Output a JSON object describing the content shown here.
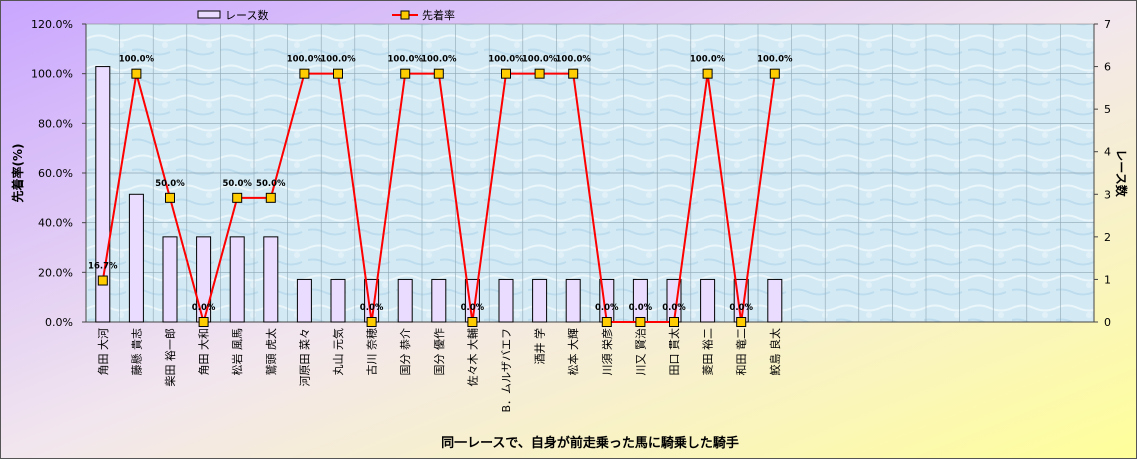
{
  "chart_data": {
    "type": "bar+line",
    "xlabel": "同一レースで、自身が前走乗った馬に騎乗した騎手",
    "y_left_label": "先着率(%)",
    "y_right_label": "レース数",
    "y_left_range": [
      0,
      120
    ],
    "y_left_ticks": [
      "0.0%",
      "20.0%",
      "40.0%",
      "60.0%",
      "80.0%",
      "100.0%",
      "120.0%"
    ],
    "y_right_range": [
      0,
      7
    ],
    "y_right_ticks": [
      "0",
      "1",
      "2",
      "3",
      "4",
      "5",
      "6",
      "7"
    ],
    "slots": 30,
    "legend": {
      "bar_label": "レース数",
      "line_label": "先着率",
      "placement": "top"
    },
    "categories": [
      "角田 大河",
      "藤懸 貴志",
      "柴田 裕一郎",
      "角田 大和",
      "松岩 風馬",
      "鷲頭 虎太",
      "河原田 菜々",
      "丸山 元気",
      "古川 奈穂",
      "国分 恭介",
      "国分 優作",
      "佐々木 大輔",
      "B．ムルザバエフ",
      "酒井 学",
      "松本 大輝",
      "川須 栄彦",
      "川又 賢治",
      "田口 貫太",
      "菱田 裕二",
      "和田 竜二",
      "鮫島 良太"
    ],
    "series": [
      {
        "name": "レース数",
        "type": "bar",
        "axis": "right",
        "values": [
          6,
          3,
          2,
          2,
          2,
          2,
          1,
          1,
          1,
          1,
          1,
          1,
          1,
          1,
          1,
          1,
          1,
          1,
          1,
          1,
          1
        ]
      },
      {
        "name": "先着率",
        "type": "line",
        "axis": "left",
        "values": [
          16.7,
          100,
          50,
          0,
          50,
          50,
          100,
          100,
          0,
          100,
          100,
          0,
          100,
          100,
          100,
          0,
          0,
          0,
          100,
          0,
          100
        ]
      }
    ],
    "data_labels": [
      "16.7%",
      "100.0%",
      "50.0%",
      "0.0%",
      "50.0%",
      "50.0%",
      "100.0%",
      "100.0%",
      "0.0%",
      "100.0%",
      "100.0%",
      "0.0%",
      "100.0%",
      "100.0%",
      "100.0%",
      "0.0%",
      "0.0%",
      "0.0%",
      "100.0%",
      "0.0%",
      "100.0%"
    ],
    "grid": true
  },
  "colors": {
    "bar_fill": "#e9dcff",
    "bar_stroke": "#000000",
    "line": "#ff0000",
    "marker_fill": "#ffcc00",
    "marker_stroke": "#000000",
    "plot_bg": "#cfe7f3",
    "bg_top_left": "#c9a6ff",
    "bg_bottom_right": "#ffff9a"
  }
}
